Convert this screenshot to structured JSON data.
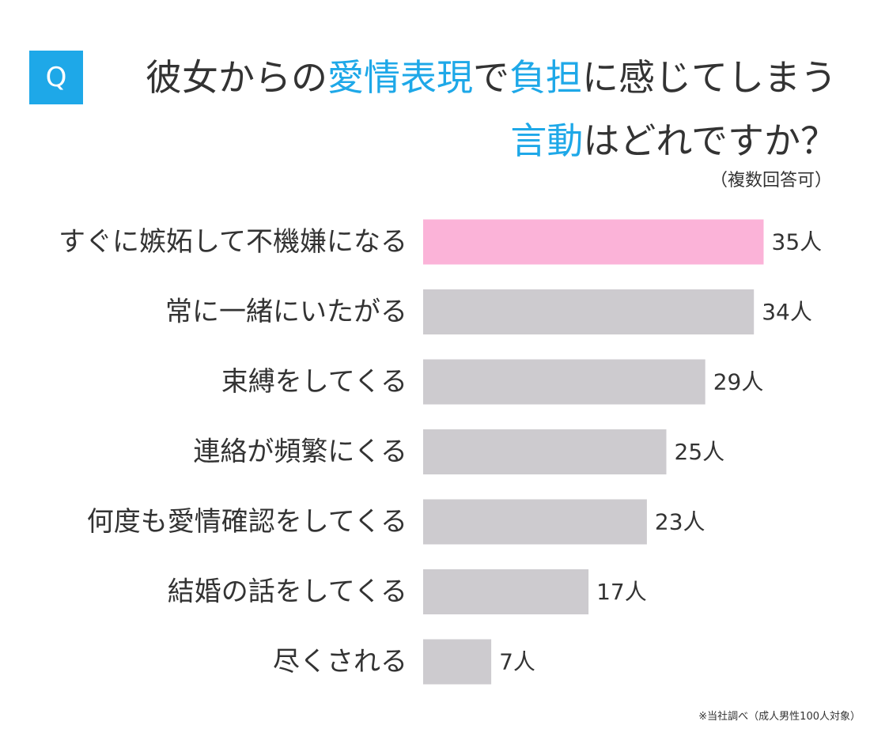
{
  "badge": "Q",
  "title": {
    "line1": [
      {
        "text": "彼女からの",
        "hl": false
      },
      {
        "text": "愛情表現",
        "hl": true
      },
      {
        "text": "で",
        "hl": false
      },
      {
        "text": "負担",
        "hl": true
      },
      {
        "text": "に感じてしまう",
        "hl": false
      }
    ],
    "line2": [
      {
        "text": "言動",
        "hl": true
      },
      {
        "text": "はどれですか？",
        "hl": false
      }
    ]
  },
  "note": "（複数回答可）",
  "footnote": "※当社調べ（成人男性100人対象）",
  "colors": {
    "accent": "#1ea8e8",
    "highlight_bar": "#fbb3d8",
    "bar": "#cdcbcf",
    "text": "#333333"
  },
  "chart_data": {
    "type": "bar",
    "orientation": "horizontal",
    "categories": [
      "すぐに嫉妬して不機嫌になる",
      "常に一緒にいたがる",
      "束縛をしてくる",
      "連絡が頻繁にくる",
      "何度も愛情確認をしてくる",
      "結婚の話をしてくる",
      "尽くされる"
    ],
    "values": [
      35,
      34,
      29,
      25,
      23,
      17,
      7
    ],
    "value_labels": [
      "35人",
      "34人",
      "29人",
      "25人",
      "23人",
      "17人",
      "7人"
    ],
    "highlight_index": 0,
    "grid": false,
    "legend": "none"
  }
}
